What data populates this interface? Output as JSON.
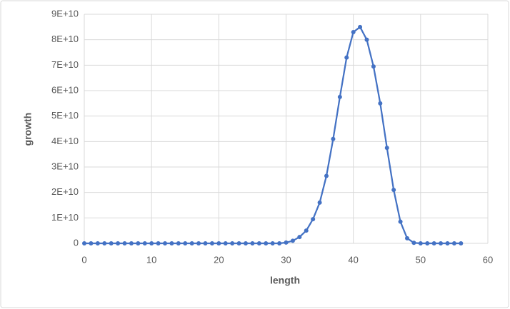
{
  "chart_data": {
    "type": "scatter",
    "x_label": "length",
    "y_label": "growth",
    "x": [
      0,
      1,
      2,
      3,
      4,
      5,
      6,
      7,
      8,
      9,
      10,
      11,
      12,
      13,
      14,
      15,
      16,
      17,
      18,
      19,
      20,
      21,
      22,
      23,
      24,
      25,
      26,
      27,
      28,
      29,
      30,
      31,
      32,
      33,
      34,
      35,
      36,
      37,
      38,
      39,
      40,
      41,
      42,
      43,
      44,
      45,
      46,
      47,
      48,
      49,
      50,
      51,
      52,
      53,
      54,
      55,
      56
    ],
    "series": [
      {
        "color": "#4472c4",
        "values": [
          0,
          0,
          0,
          0,
          0,
          0,
          0,
          0,
          0,
          0,
          0,
          0,
          0,
          0,
          0,
          0,
          0,
          0,
          0,
          0,
          0,
          0,
          0,
          0,
          0,
          0,
          0,
          0,
          0,
          0,
          300000000,
          1000000000,
          2500000000,
          5000000000,
          9500000000,
          16000000000,
          26500000000,
          41000000000,
          57500000000,
          73000000000,
          83000000000,
          85000000000,
          80000000000,
          69500000000,
          55000000000,
          37500000000,
          21000000000,
          8500000000,
          2000000000,
          200000000,
          0,
          0,
          0,
          0,
          0,
          0,
          0
        ]
      }
    ],
    "xlim": [
      0,
      60
    ],
    "xticks": [
      0,
      10,
      20,
      30,
      40,
      50,
      60
    ],
    "ylim": [
      0,
      90000000000
    ],
    "yticks": [
      0,
      {
        "value": 10000000000,
        "label": "1E+10"
      },
      {
        "value": 20000000000,
        "label": "2E+10"
      },
      {
        "value": 30000000000,
        "label": "3E+10"
      },
      {
        "value": 40000000000,
        "label": "4E+10"
      },
      {
        "value": 50000000000,
        "label": "5E+10"
      },
      {
        "value": 60000000000,
        "label": "6E+10"
      },
      {
        "value": 70000000000,
        "label": "7E+10"
      },
      {
        "value": 80000000000,
        "label": "8E+10"
      },
      {
        "value": 90000000000,
        "label": "9E+10"
      }
    ],
    "grid": true
  }
}
